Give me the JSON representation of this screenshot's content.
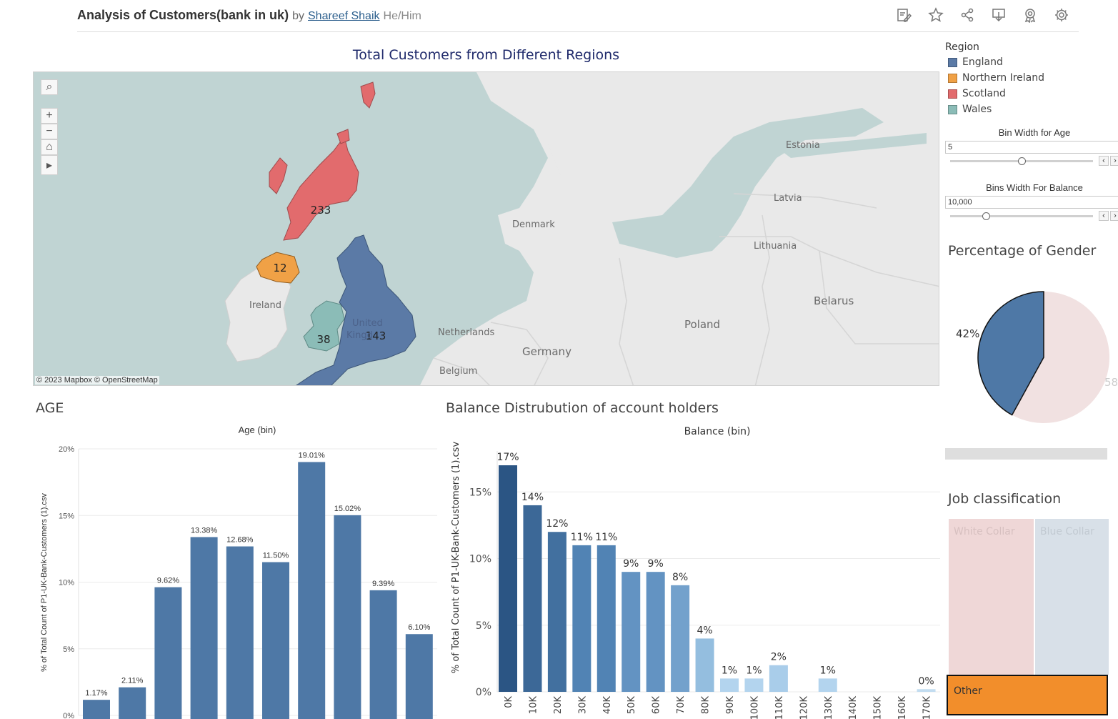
{
  "header": {
    "title": "Analysis of Customers(bank in uk)",
    "by": "by",
    "author": "Shareef Shaik",
    "pronouns": "He/Him",
    "toolbar_icons": [
      "edit-icon",
      "star-icon",
      "share-icon",
      "download-icon",
      "badge-icon",
      "settings-icon"
    ]
  },
  "map": {
    "title": "Total Customers from Different Regions",
    "credit": "© 2023 Mapbox  © OpenStreetMap",
    "region_values": {
      "scotland": "233",
      "northern_ireland": "12",
      "wales": "38",
      "england": "143"
    },
    "place_labels": {
      "ireland": "Ireland",
      "united": "United",
      "kingdom": "Kingd",
      "denmark": "Denmark",
      "netherlands": "Netherlands",
      "belgium": "Belgium",
      "germany": "Germany",
      "poland": "Poland",
      "belarus": "Belarus",
      "lithuania": "Lithuania",
      "latvia": "Latvia",
      "estonia": "Estonia"
    },
    "colors": {
      "sea": "#c0d4d3",
      "land": "#e9e9e9",
      "england": "#5b7aa6",
      "northern_ireland": "#f0a146",
      "scotland": "#e26b6d",
      "wales": "#8bbcb7"
    }
  },
  "legend": {
    "title": "Region",
    "items": [
      {
        "label": "England",
        "color": "#5b7aa6"
      },
      {
        "label": "Northern Ireland",
        "color": "#f0a146"
      },
      {
        "label": "Scotland",
        "color": "#e26b6d"
      },
      {
        "label": "Wales",
        "color": "#8bbcb7"
      }
    ]
  },
  "params": {
    "age_bin": {
      "title": "Bin Width for Age",
      "value": "5"
    },
    "balance_bin": {
      "title": "Bins Width For Balance",
      "value": "10,000"
    }
  },
  "gender": {
    "title": "Percentage of Gender",
    "label_left": "42%",
    "label_right": "58",
    "colors": {
      "male": "#4e78a6",
      "female": "#f1e1e1"
    }
  },
  "job": {
    "title": "Job classification",
    "white_collar": "White Collar",
    "blue_collar": "Blue Collar",
    "other": "Other",
    "colors": {
      "white_collar": "#efd7d7",
      "blue_collar": "#d8e0e8",
      "other": "#f28e2b"
    }
  },
  "age_chart_title": "AGE",
  "balance_chart_title": "Balance Distrubution of account holders",
  "chart_data": [
    {
      "type": "bar",
      "title": "Age (bin)",
      "ylabel": "% of Total Count of P1-UK-Bank-Customers (1).csv",
      "ylim": [
        0,
        20
      ],
      "yticks": [
        "0%",
        "5%",
        "10%",
        "15%",
        "20%"
      ],
      "values": [
        1.17,
        2.11,
        9.62,
        13.38,
        12.68,
        11.5,
        19.01,
        15.02,
        9.39,
        6.1
      ],
      "labels": [
        "1.17%",
        "2.11%",
        "9.62%",
        "13.38%",
        "12.68%",
        "11.50%",
        "19.01%",
        "15.02%",
        "9.39%",
        "6.10%"
      ],
      "color": "#4e78a6",
      "grid": true
    },
    {
      "type": "bar",
      "title": "Balance (bin)",
      "ylabel": "% of Total Count of P1-UK-Bank-Customers (1).csv",
      "ylim": [
        0,
        17
      ],
      "yticks": [
        "0%",
        "5%",
        "10%",
        "15%"
      ],
      "categories": [
        "0K",
        "10K",
        "20K",
        "30K",
        "40K",
        "50K",
        "60K",
        "70K",
        "80K",
        "90K",
        "100K",
        "110K",
        "120K",
        "130K",
        "140K",
        "150K",
        "160K",
        "170K"
      ],
      "values": [
        17,
        14,
        12,
        11,
        11,
        9,
        9,
        8,
        4,
        1,
        1,
        2,
        0,
        1,
        0,
        0,
        0,
        0.2
      ],
      "labels": [
        "17%",
        "14%",
        "12%",
        "11%",
        "11%",
        "9%",
        "9%",
        "8%",
        "4%",
        "1%",
        "1%",
        "2%",
        "",
        "1%",
        "",
        "",
        "",
        "0%"
      ],
      "colors": [
        "#2b5584",
        "#3c6897",
        "#42709f",
        "#5183b4",
        "#5183b4",
        "#6393c2",
        "#6393c2",
        "#73a1cc",
        "#94bedf",
        "#b3d4ee",
        "#b3d4ee",
        "#a9cdea",
        "#ffffff",
        "#b3d4ee",
        "#ffffff",
        "#ffffff",
        "#ffffff",
        "#c2dcf0"
      ],
      "grid": true
    }
  ]
}
